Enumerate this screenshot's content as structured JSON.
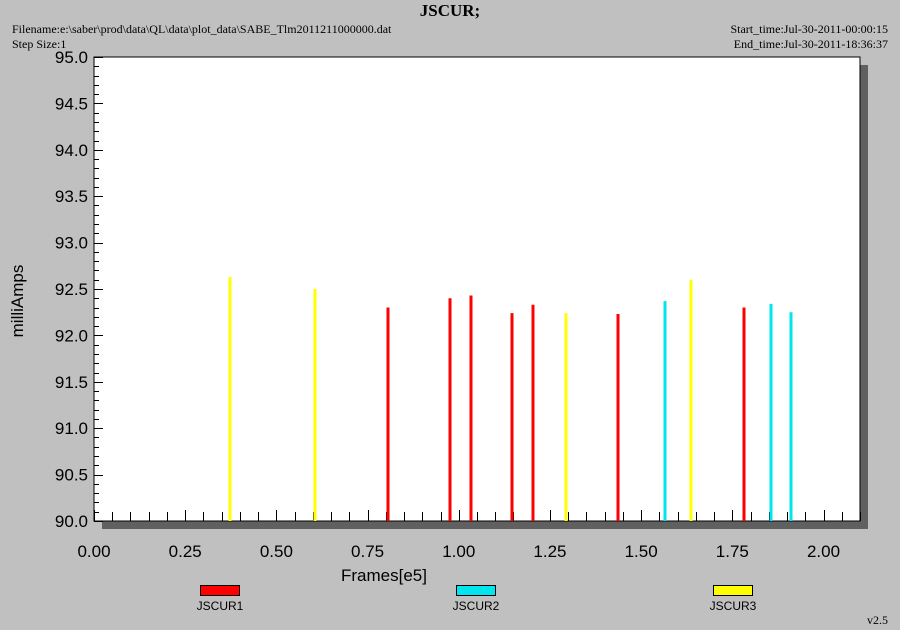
{
  "header": {
    "title": "JSCUR;",
    "filename": "Filename:e:\\saber\\prod\\data\\QL\\data\\plot_data\\SABE_Tlm2011211000000.dat",
    "step_size": "Step Size:1",
    "start_time": "Start_time:Jul-30-2011-00:00:15",
    "end_time": "End_time:Jul-30-2011-18:36:37"
  },
  "version": "v2.5",
  "chart_data": {
    "type": "bar",
    "title": "JSCUR;",
    "xlabel": "Frames[e5]",
    "ylabel": "milliAmps",
    "xlim": [
      0,
      2.1
    ],
    "ylim": [
      90.0,
      95.0
    ],
    "xticks": [
      "0.00",
      "0.25",
      "0.50",
      "0.75",
      "1.00",
      "1.25",
      "1.50",
      "1.75",
      "2.00"
    ],
    "yticks": [
      "90.0",
      "90.5",
      "91.0",
      "91.5",
      "92.0",
      "92.5",
      "93.0",
      "93.5",
      "94.0",
      "94.5",
      "95.0"
    ],
    "grid": false,
    "legend_position": "bottom",
    "series": [
      {
        "name": "JSCUR1",
        "color": "#ff0000",
        "points": [
          [
            0.805,
            92.3
          ],
          [
            0.975,
            92.4
          ],
          [
            1.033,
            92.43
          ],
          [
            1.147,
            92.24
          ],
          [
            1.204,
            92.33
          ],
          [
            1.436,
            92.23
          ],
          [
            1.782,
            92.3
          ]
        ]
      },
      {
        "name": "JSCUR2",
        "color": "#00e5ee",
        "points": [
          [
            1.566,
            92.37
          ],
          [
            1.855,
            92.34
          ],
          [
            1.91,
            92.25
          ]
        ]
      },
      {
        "name": "JSCUR3",
        "color": "#ffff00",
        "points": [
          [
            0.372,
            92.63
          ],
          [
            0.606,
            92.5
          ],
          [
            1.293,
            92.24
          ],
          [
            1.636,
            92.6
          ]
        ]
      }
    ]
  }
}
